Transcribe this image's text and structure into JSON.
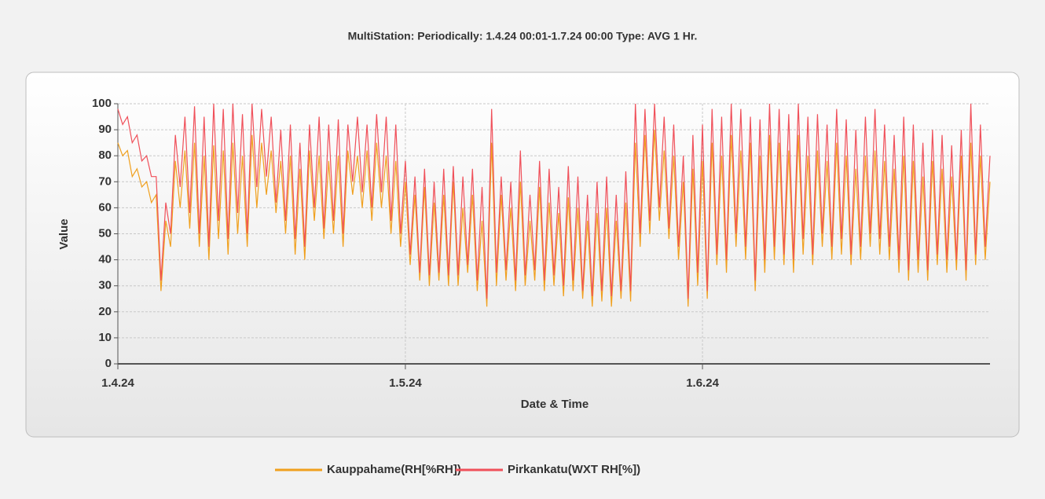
{
  "chart_data": {
    "type": "line",
    "title": "MultiStation:  Periodically: 1.4.24 00:01-1.7.24 00:00  Type: AVG 1 Hr.",
    "xlabel": "Date & Time",
    "ylabel": "Value",
    "xlim": [
      0,
      91
    ],
    "xticks": [
      {
        "value": 0,
        "label": "1.4.24"
      },
      {
        "value": 30,
        "label": "1.5.24"
      },
      {
        "value": 61,
        "label": "1.6.24"
      }
    ],
    "ylim": [
      0,
      100
    ],
    "yticks": [
      0,
      10,
      20,
      30,
      40,
      50,
      60,
      70,
      80,
      90,
      100
    ],
    "grid": true,
    "x": [
      0,
      0.5,
      1,
      1.5,
      2,
      2.5,
      3,
      3.5,
      4,
      4.5,
      5,
      5.5,
      6,
      6.5,
      7,
      7.5,
      8,
      8.5,
      9,
      9.5,
      10,
      10.5,
      11,
      11.5,
      12,
      12.5,
      13,
      13.5,
      14,
      14.5,
      15,
      15.5,
      16,
      16.5,
      17,
      17.5,
      18,
      18.5,
      19,
      19.5,
      20,
      20.5,
      21,
      21.5,
      22,
      22.5,
      23,
      23.5,
      24,
      24.5,
      25,
      25.5,
      26,
      26.5,
      27,
      27.5,
      28,
      28.5,
      29,
      29.5,
      30,
      30.5,
      31,
      31.5,
      32,
      32.5,
      33,
      33.5,
      34,
      34.5,
      35,
      35.5,
      36,
      36.5,
      37,
      37.5,
      38,
      38.5,
      39,
      39.5,
      40,
      40.5,
      41,
      41.5,
      42,
      42.5,
      43,
      43.5,
      44,
      44.5,
      45,
      45.5,
      46,
      46.5,
      47,
      47.5,
      48,
      48.5,
      49,
      49.5,
      50,
      50.5,
      51,
      51.5,
      52,
      52.5,
      53,
      53.5,
      54,
      54.5,
      55,
      55.5,
      56,
      56.5,
      57,
      57.5,
      58,
      58.5,
      59,
      59.5,
      60,
      60.5,
      61,
      61.5,
      62,
      62.5,
      63,
      63.5,
      64,
      64.5,
      65,
      65.5,
      66,
      66.5,
      67,
      67.5,
      68,
      68.5,
      69,
      69.5,
      70,
      70.5,
      71,
      71.5,
      72,
      72.5,
      73,
      73.5,
      74,
      74.5,
      75,
      75.5,
      76,
      76.5,
      77,
      77.5,
      78,
      78.5,
      79,
      79.5,
      80,
      80.5,
      81,
      81.5,
      82,
      82.5,
      83,
      83.5,
      84,
      84.5,
      85,
      85.5,
      86,
      86.5,
      87,
      87.5,
      88,
      88.5,
      89,
      89.5,
      90,
      90.5,
      91
    ],
    "series": [
      {
        "name": "Kauppahame(RH[%RH])",
        "color": "#f0a01e",
        "values": [
          85,
          80,
          82,
          72,
          75,
          68,
          70,
          62,
          65,
          28,
          55,
          45,
          78,
          60,
          82,
          52,
          85,
          45,
          80,
          40,
          84,
          48,
          82,
          42,
          85,
          50,
          80,
          45,
          88,
          60,
          85,
          65,
          82,
          58,
          78,
          50,
          80,
          42,
          75,
          40,
          82,
          55,
          80,
          48,
          78,
          50,
          80,
          45,
          82,
          65,
          80,
          60,
          82,
          55,
          85,
          60,
          80,
          50,
          78,
          45,
          70,
          38,
          65,
          32,
          68,
          30,
          62,
          32,
          65,
          30,
          70,
          30,
          60,
          35,
          65,
          28,
          55,
          22,
          85,
          30,
          65,
          32,
          60,
          28,
          70,
          30,
          55,
          32,
          68,
          28,
          62,
          30,
          58,
          26,
          64,
          28,
          60,
          25,
          55,
          22,
          58,
          24,
          60,
          22,
          55,
          25,
          62,
          24,
          85,
          45,
          88,
          50,
          90,
          55,
          82,
          48,
          80,
          40,
          70,
          22,
          75,
          30,
          78,
          25,
          85,
          38,
          80,
          35,
          88,
          45,
          82,
          40,
          85,
          28,
          80,
          35,
          88,
          40,
          85,
          38,
          82,
          35,
          88,
          42,
          80,
          38,
          82,
          45,
          78,
          40,
          85,
          42,
          80,
          38,
          75,
          40,
          80,
          45,
          82,
          42,
          78,
          40,
          75,
          35,
          80,
          32,
          78,
          35,
          72,
          32,
          78,
          38,
          75,
          35,
          72,
          36,
          80,
          32,
          85,
          38,
          80,
          40,
          70
        ]
      },
      {
        "name": "Pirkankatu(WXT RH[%])",
        "color": "#f0505a",
        "values": [
          98,
          92,
          95,
          85,
          88,
          78,
          80,
          72,
          72,
          32,
          62,
          50,
          88,
          68,
          95,
          58,
          99,
          50,
          95,
          45,
          100,
          55,
          98,
          48,
          100,
          58,
          96,
          50,
          100,
          68,
          98,
          72,
          95,
          62,
          90,
          55,
          92,
          48,
          85,
          45,
          92,
          60,
          95,
          52,
          92,
          55,
          94,
          50,
          92,
          70,
          95,
          66,
          92,
          60,
          96,
          66,
          95,
          55,
          92,
          50,
          78,
          42,
          72,
          35,
          75,
          34,
          70,
          35,
          75,
          34,
          76,
          34,
          72,
          38,
          75,
          32,
          68,
          25,
          98,
          35,
          72,
          36,
          70,
          32,
          82,
          34,
          65,
          36,
          78,
          32,
          75,
          34,
          68,
          30,
          76,
          32,
          72,
          28,
          65,
          26,
          70,
          28,
          72,
          26,
          65,
          28,
          74,
          28,
          100,
          50,
          98,
          55,
          100,
          60,
          95,
          52,
          92,
          45,
          80,
          25,
          88,
          35,
          92,
          28,
          98,
          42,
          95,
          40,
          100,
          50,
          98,
          45,
          95,
          32,
          94,
          40,
          100,
          45,
          98,
          42,
          96,
          40,
          100,
          48,
          95,
          42,
          96,
          50,
          92,
          45,
          98,
          48,
          94,
          42,
          90,
          45,
          95,
          50,
          98,
          48,
          92,
          45,
          88,
          40,
          95,
          36,
          92,
          40,
          85,
          36,
          90,
          42,
          88,
          40,
          84,
          40,
          90,
          36,
          100,
          42,
          92,
          45,
          80
        ]
      }
    ]
  }
}
